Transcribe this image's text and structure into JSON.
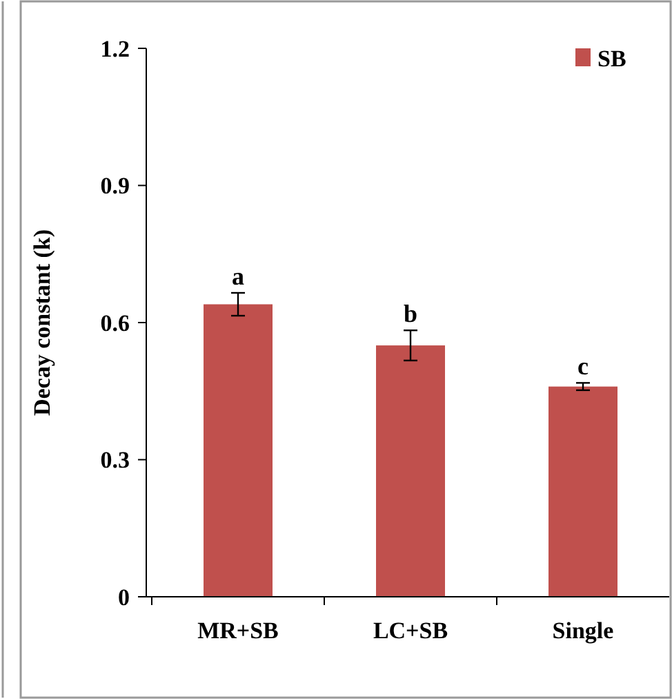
{
  "chart_data": {
    "type": "bar",
    "ylabel": "Decay constant (k)",
    "categories": [
      "MR+SB",
      "LC+SB",
      "Single"
    ],
    "series": [
      {
        "name": "SB",
        "color": "#c0504d",
        "values": [
          0.64,
          0.55,
          0.46
        ],
        "errors": [
          0.025,
          0.033,
          0.008
        ]
      }
    ],
    "ylim": [
      0,
      1.2
    ],
    "yticks": [
      0,
      0.3,
      0.6,
      0.9,
      1.2
    ],
    "legend": "top right",
    "annotations": [
      {
        "text": "a",
        "x": "MR+SB",
        "y": 0.665
      },
      {
        "text": "b",
        "x": "LC+SB",
        "y": 0.583
      },
      {
        "text": "c",
        "x": "Single",
        "y": 0.468
      }
    ]
  }
}
